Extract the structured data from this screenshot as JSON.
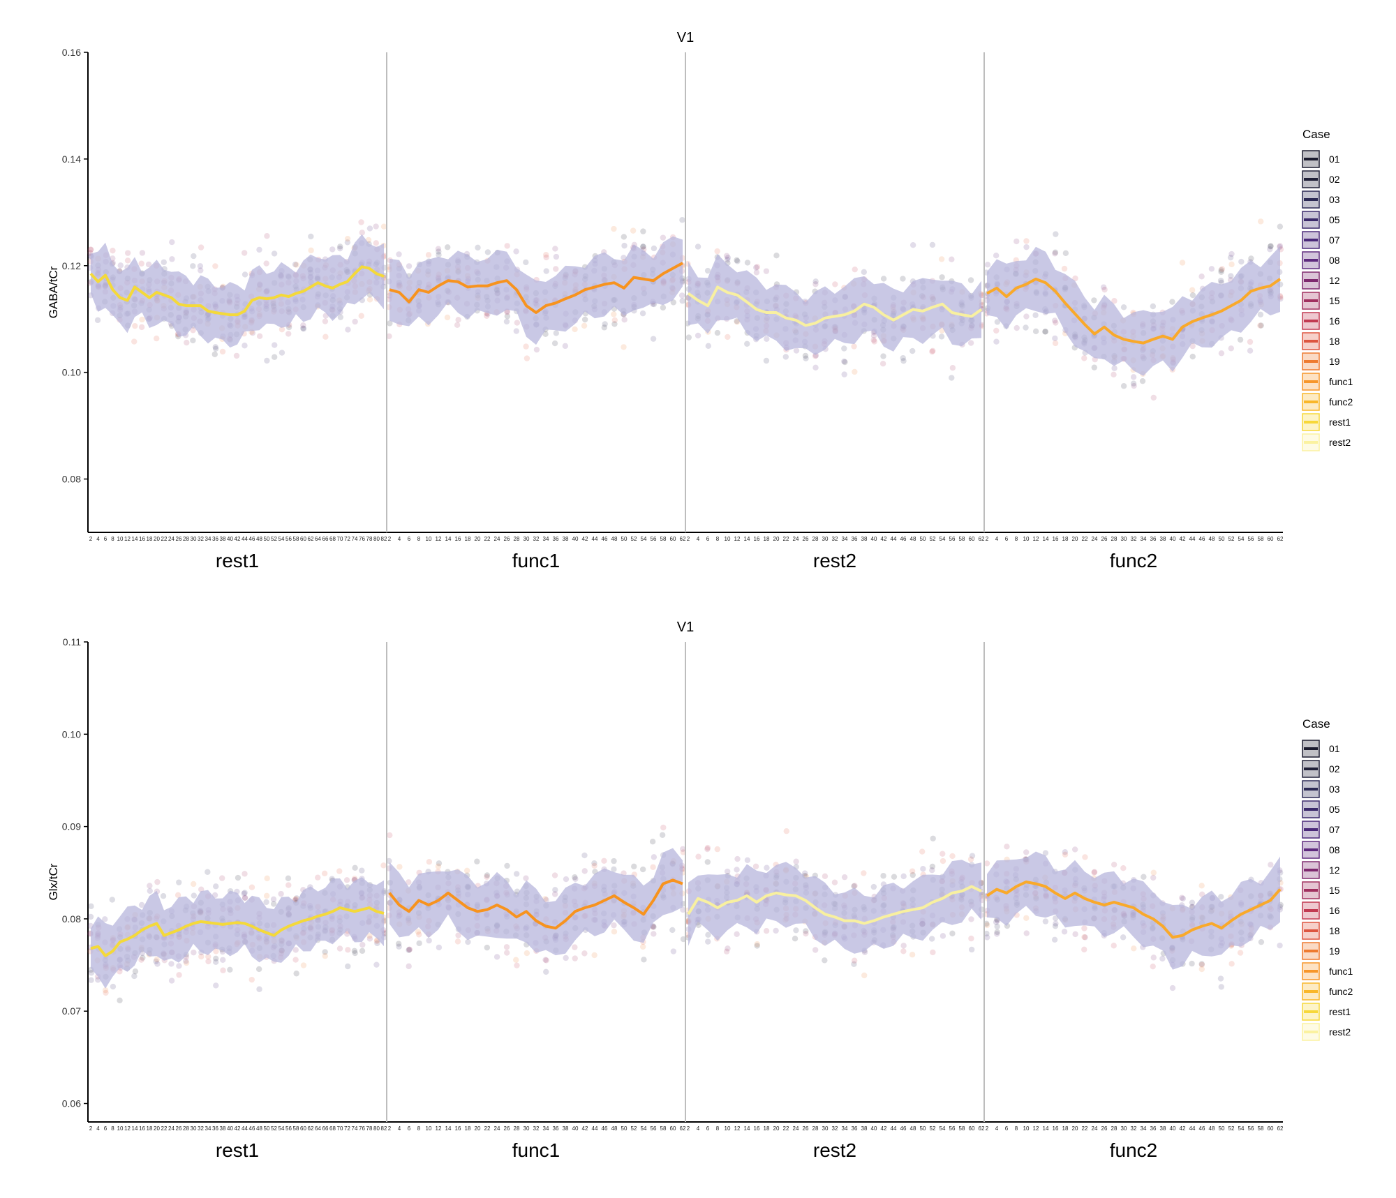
{
  "legend": {
    "title": "Case",
    "items": [
      {
        "label": "01",
        "color": "#1b1b2e"
      },
      {
        "label": "02",
        "color": "#202038"
      },
      {
        "label": "03",
        "color": "#2c2a55"
      },
      {
        "label": "05",
        "color": "#3b2a6b"
      },
      {
        "label": "07",
        "color": "#4b2a7a"
      },
      {
        "label": "08",
        "color": "#5e2a7e"
      },
      {
        "label": "12",
        "color": "#7f2a6f"
      },
      {
        "label": "15",
        "color": "#a1305f"
      },
      {
        "label": "16",
        "color": "#c23a52"
      },
      {
        "label": "18",
        "color": "#dd5540"
      },
      {
        "label": "19",
        "color": "#ee7a30"
      },
      {
        "label": "func1",
        "color": "#f7962a"
      },
      {
        "label": "func2",
        "color": "#f9b72a"
      },
      {
        "label": "rest1",
        "color": "#f7d83a"
      },
      {
        "label": "rest2",
        "color": "#fbf2a0"
      }
    ]
  },
  "colors": {
    "band": "#b7b6dc",
    "func1": "#f7931e",
    "func2": "#f9a92a",
    "rest1": "#f4d93a",
    "rest2": "#f8f0a0",
    "divider": "#bdbdbd"
  },
  "chart_data": [
    {
      "type": "line",
      "title": "V1",
      "ylabel": "GABA/tCr",
      "ylim": [
        0.07,
        0.16
      ],
      "yticks": [
        "0.08",
        "0.10",
        "0.12",
        "0.14",
        "0.16"
      ],
      "segments": [
        {
          "name": "rest1",
          "x_range": [
            2,
            82
          ],
          "color_key": "rest1",
          "mean": [
            0.1185,
            0.117,
            0.1182,
            0.1155,
            0.114,
            0.1135,
            0.116,
            0.115,
            0.114,
            0.115,
            0.1145,
            0.114,
            0.1128,
            0.1125,
            0.1125,
            0.1125,
            0.1115,
            0.1112,
            0.111,
            0.1108,
            0.1108,
            0.1115,
            0.1135,
            0.114,
            0.1138,
            0.114,
            0.1145,
            0.1142,
            0.1148,
            0.1152,
            0.116,
            0.1168,
            0.1162,
            0.1158,
            0.1165,
            0.117,
            0.1185,
            0.1198,
            0.1195,
            0.1185,
            0.118
          ]
        },
        {
          "name": "func1",
          "x_range": [
            2,
            62
          ],
          "color_key": "func1",
          "mean": [
            0.1155,
            0.115,
            0.1132,
            0.1155,
            0.115,
            0.1162,
            0.1172,
            0.117,
            0.116,
            0.1162,
            0.1162,
            0.1168,
            0.1172,
            0.1155,
            0.1125,
            0.1112,
            0.1125,
            0.113,
            0.1138,
            0.1145,
            0.1155,
            0.116,
            0.1165,
            0.1168,
            0.1158,
            0.1178,
            0.1175,
            0.1172,
            0.1185,
            0.1195,
            0.1205
          ]
        },
        {
          "name": "rest2",
          "x_range": [
            2,
            62
          ],
          "color_key": "rest2",
          "mean": [
            0.1148,
            0.1135,
            0.1125,
            0.116,
            0.115,
            0.1145,
            0.1132,
            0.1118,
            0.1112,
            0.1112,
            0.1102,
            0.1098,
            0.1088,
            0.1092,
            0.1102,
            0.1105,
            0.1108,
            0.1115,
            0.1128,
            0.1122,
            0.1108,
            0.1098,
            0.1108,
            0.1118,
            0.1115,
            0.1122,
            0.1128,
            0.1112,
            0.1108,
            0.1105,
            0.1118
          ]
        },
        {
          "name": "func2",
          "x_range": [
            2,
            62
          ],
          "color_key": "func2",
          "mean": [
            0.1148,
            0.1158,
            0.1142,
            0.1158,
            0.1165,
            0.1175,
            0.1168,
            0.1152,
            0.113,
            0.111,
            0.109,
            0.1072,
            0.1085,
            0.107,
            0.1062,
            0.1058,
            0.1055,
            0.1062,
            0.1068,
            0.1062,
            0.1085,
            0.1095,
            0.1102,
            0.1108,
            0.1115,
            0.1125,
            0.1135,
            0.1152,
            0.1158,
            0.1162,
            0.1175
          ]
        }
      ]
    },
    {
      "type": "line",
      "title": "V1",
      "ylabel": "Glx/tCr",
      "ylim": [
        0.058,
        0.11
      ],
      "yticks": [
        "0.06",
        "0.07",
        "0.08",
        "0.09",
        "0.10",
        "0.11"
      ],
      "segments": [
        {
          "name": "rest1",
          "x_range": [
            2,
            82
          ],
          "color_key": "rest1",
          "mean": [
            0.0768,
            0.077,
            0.076,
            0.0765,
            0.0775,
            0.0778,
            0.0782,
            0.0788,
            0.0792,
            0.0795,
            0.0782,
            0.0785,
            0.0788,
            0.0792,
            0.0795,
            0.0797,
            0.0796,
            0.0795,
            0.0794,
            0.0795,
            0.0796,
            0.0795,
            0.0792,
            0.0788,
            0.0785,
            0.0782,
            0.0788,
            0.0792,
            0.0795,
            0.0798,
            0.08,
            0.0803,
            0.0805,
            0.0808,
            0.0812,
            0.081,
            0.0808,
            0.081,
            0.0812,
            0.0808,
            0.0806
          ]
        },
        {
          "name": "func1",
          "x_range": [
            2,
            62
          ],
          "color_key": "func1",
          "mean": [
            0.0828,
            0.0815,
            0.0808,
            0.082,
            0.0815,
            0.082,
            0.0828,
            0.082,
            0.0812,
            0.0808,
            0.081,
            0.0815,
            0.081,
            0.0802,
            0.0808,
            0.0798,
            0.0792,
            0.079,
            0.0798,
            0.0808,
            0.0812,
            0.0815,
            0.082,
            0.0825,
            0.0818,
            0.0812,
            0.0805,
            0.082,
            0.0838,
            0.0842,
            0.0838
          ]
        },
        {
          "name": "rest2",
          "x_range": [
            2,
            62
          ],
          "color_key": "rest2",
          "mean": [
            0.0805,
            0.0822,
            0.0818,
            0.0812,
            0.0818,
            0.082,
            0.0825,
            0.0818,
            0.0825,
            0.0828,
            0.0826,
            0.0825,
            0.082,
            0.0812,
            0.0805,
            0.0802,
            0.0798,
            0.0798,
            0.0795,
            0.0798,
            0.0802,
            0.0805,
            0.0808,
            0.081,
            0.0812,
            0.0818,
            0.0822,
            0.0828,
            0.083,
            0.0835,
            0.083
          ]
        },
        {
          "name": "func2",
          "x_range": [
            2,
            62
          ],
          "color_key": "func2",
          "mean": [
            0.0825,
            0.0832,
            0.0828,
            0.0835,
            0.084,
            0.0838,
            0.0835,
            0.0828,
            0.0822,
            0.0828,
            0.0822,
            0.0818,
            0.0815,
            0.0818,
            0.0815,
            0.0812,
            0.0805,
            0.08,
            0.0792,
            0.078,
            0.0782,
            0.0788,
            0.0792,
            0.0795,
            0.079,
            0.0798,
            0.0805,
            0.081,
            0.0815,
            0.082,
            0.0832
          ]
        }
      ]
    }
  ]
}
